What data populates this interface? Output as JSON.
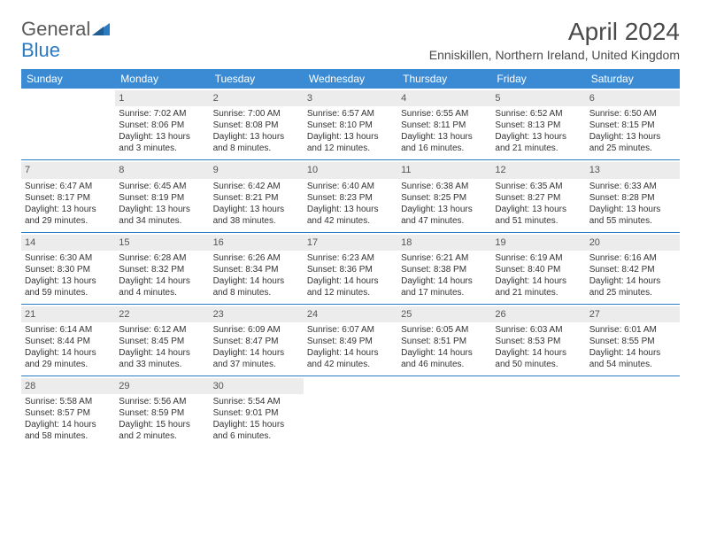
{
  "logo": {
    "text1": "General",
    "text2": "Blue"
  },
  "title": "April 2024",
  "location": "Enniskillen, Northern Ireland, United Kingdom",
  "header_bg": "#3b8bd4",
  "header_fg": "#ffffff",
  "divider_color": "#2b7bc3",
  "daynum_bg": "#ececec",
  "text_color": "#333333",
  "weekdays": [
    "Sunday",
    "Monday",
    "Tuesday",
    "Wednesday",
    "Thursday",
    "Friday",
    "Saturday"
  ],
  "grid": [
    [
      null,
      {
        "n": "1",
        "sr": "7:02 AM",
        "ss": "8:06 PM",
        "dl": "13 hours and 3 minutes."
      },
      {
        "n": "2",
        "sr": "7:00 AM",
        "ss": "8:08 PM",
        "dl": "13 hours and 8 minutes."
      },
      {
        "n": "3",
        "sr": "6:57 AM",
        "ss": "8:10 PM",
        "dl": "13 hours and 12 minutes."
      },
      {
        "n": "4",
        "sr": "6:55 AM",
        "ss": "8:11 PM",
        "dl": "13 hours and 16 minutes."
      },
      {
        "n": "5",
        "sr": "6:52 AM",
        "ss": "8:13 PM",
        "dl": "13 hours and 21 minutes."
      },
      {
        "n": "6",
        "sr": "6:50 AM",
        "ss": "8:15 PM",
        "dl": "13 hours and 25 minutes."
      }
    ],
    [
      {
        "n": "7",
        "sr": "6:47 AM",
        "ss": "8:17 PM",
        "dl": "13 hours and 29 minutes."
      },
      {
        "n": "8",
        "sr": "6:45 AM",
        "ss": "8:19 PM",
        "dl": "13 hours and 34 minutes."
      },
      {
        "n": "9",
        "sr": "6:42 AM",
        "ss": "8:21 PM",
        "dl": "13 hours and 38 minutes."
      },
      {
        "n": "10",
        "sr": "6:40 AM",
        "ss": "8:23 PM",
        "dl": "13 hours and 42 minutes."
      },
      {
        "n": "11",
        "sr": "6:38 AM",
        "ss": "8:25 PM",
        "dl": "13 hours and 47 minutes."
      },
      {
        "n": "12",
        "sr": "6:35 AM",
        "ss": "8:27 PM",
        "dl": "13 hours and 51 minutes."
      },
      {
        "n": "13",
        "sr": "6:33 AM",
        "ss": "8:28 PM",
        "dl": "13 hours and 55 minutes."
      }
    ],
    [
      {
        "n": "14",
        "sr": "6:30 AM",
        "ss": "8:30 PM",
        "dl": "13 hours and 59 minutes."
      },
      {
        "n": "15",
        "sr": "6:28 AM",
        "ss": "8:32 PM",
        "dl": "14 hours and 4 minutes."
      },
      {
        "n": "16",
        "sr": "6:26 AM",
        "ss": "8:34 PM",
        "dl": "14 hours and 8 minutes."
      },
      {
        "n": "17",
        "sr": "6:23 AM",
        "ss": "8:36 PM",
        "dl": "14 hours and 12 minutes."
      },
      {
        "n": "18",
        "sr": "6:21 AM",
        "ss": "8:38 PM",
        "dl": "14 hours and 17 minutes."
      },
      {
        "n": "19",
        "sr": "6:19 AM",
        "ss": "8:40 PM",
        "dl": "14 hours and 21 minutes."
      },
      {
        "n": "20",
        "sr": "6:16 AM",
        "ss": "8:42 PM",
        "dl": "14 hours and 25 minutes."
      }
    ],
    [
      {
        "n": "21",
        "sr": "6:14 AM",
        "ss": "8:44 PM",
        "dl": "14 hours and 29 minutes."
      },
      {
        "n": "22",
        "sr": "6:12 AM",
        "ss": "8:45 PM",
        "dl": "14 hours and 33 minutes."
      },
      {
        "n": "23",
        "sr": "6:09 AM",
        "ss": "8:47 PM",
        "dl": "14 hours and 37 minutes."
      },
      {
        "n": "24",
        "sr": "6:07 AM",
        "ss": "8:49 PM",
        "dl": "14 hours and 42 minutes."
      },
      {
        "n": "25",
        "sr": "6:05 AM",
        "ss": "8:51 PM",
        "dl": "14 hours and 46 minutes."
      },
      {
        "n": "26",
        "sr": "6:03 AM",
        "ss": "8:53 PM",
        "dl": "14 hours and 50 minutes."
      },
      {
        "n": "27",
        "sr": "6:01 AM",
        "ss": "8:55 PM",
        "dl": "14 hours and 54 minutes."
      }
    ],
    [
      {
        "n": "28",
        "sr": "5:58 AM",
        "ss": "8:57 PM",
        "dl": "14 hours and 58 minutes."
      },
      {
        "n": "29",
        "sr": "5:56 AM",
        "ss": "8:59 PM",
        "dl": "15 hours and 2 minutes."
      },
      {
        "n": "30",
        "sr": "5:54 AM",
        "ss": "9:01 PM",
        "dl": "15 hours and 6 minutes."
      },
      null,
      null,
      null,
      null
    ]
  ],
  "labels": {
    "sunrise": "Sunrise: ",
    "sunset": "Sunset: ",
    "daylight": "Daylight: "
  }
}
